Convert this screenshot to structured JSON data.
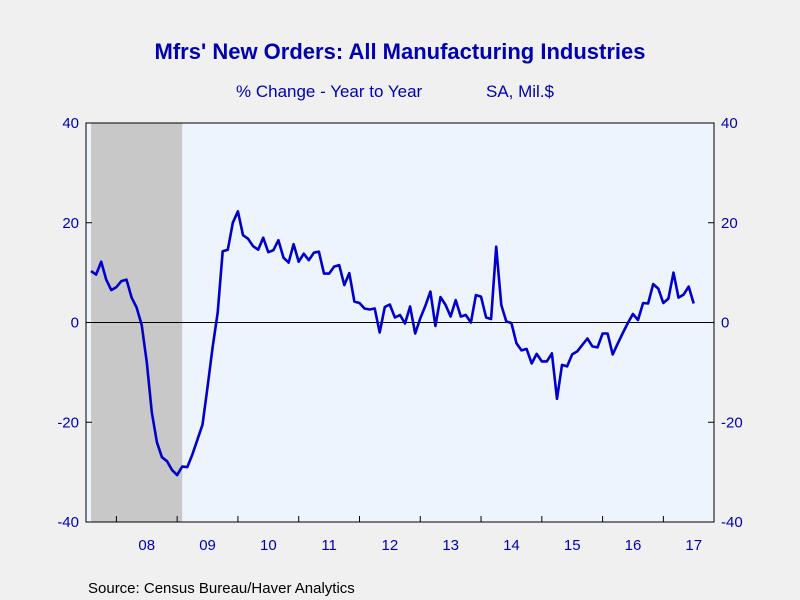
{
  "chart_data": {
    "type": "line",
    "title": "Mfrs' New Orders: All Manufacturing Industries",
    "subtitle_left": "% Change - Year to Year",
    "subtitle_right": "SA, Mil.$",
    "source": "Source:  Census Bureau/Haver Analytics",
    "ylim": [
      -40,
      40
    ],
    "yticks": [
      40,
      20,
      0,
      -20,
      -40
    ],
    "yticks_right": [
      40,
      20,
      0,
      -20,
      -40
    ],
    "x_range": [
      2007.5,
      2017.833
    ],
    "x_tick_labels": [
      {
        "label": "08",
        "x": 2008.0
      },
      {
        "label": "09",
        "x": 2009.0
      },
      {
        "label": "10",
        "x": 2010.0
      },
      {
        "label": "11",
        "x": 2011.0
      },
      {
        "label": "12",
        "x": 2012.0
      },
      {
        "label": "13",
        "x": 2013.0
      },
      {
        "label": "14",
        "x": 2014.0
      },
      {
        "label": "15",
        "x": 2015.0
      },
      {
        "label": "16",
        "x": 2016.0
      },
      {
        "label": "17",
        "x": 2017.0
      }
    ],
    "recession": {
      "start": 2007.583,
      "end": 2009.083
    },
    "grid": false,
    "colors": {
      "line": "#0000c8",
      "recession": "#c8c8c8",
      "plot_bg": "#eef4fe",
      "text": "#0000b0"
    },
    "series": [
      {
        "start": 2007.583,
        "step": 0.08333,
        "values": [
          10.3,
          9.6,
          12.2,
          8.6,
          6.5,
          7.1,
          8.3,
          8.6,
          5.0,
          3.0,
          -0.5,
          -8.0,
          -18.0,
          -24.0,
          -27.0,
          -27.8,
          -29.6,
          -30.6,
          -28.9,
          -29.0,
          -26.5,
          -23.5,
          -20.5,
          -13.0,
          -5.0,
          2.0,
          14.3,
          14.6,
          20.0,
          22.3,
          17.5,
          16.8,
          15.3,
          14.6,
          17.0,
          14.1,
          14.5,
          16.5,
          13.0,
          12.0,
          15.7,
          12.2,
          13.8,
          12.5,
          14.0,
          14.2,
          9.8,
          9.8,
          11.2,
          11.5,
          7.5,
          9.9,
          4.2,
          3.9,
          2.8,
          2.6,
          2.8,
          -2.0,
          3.1,
          3.6,
          1.0,
          1.5,
          -0.2,
          3.2,
          -2.2,
          0.8,
          3.3,
          6.2,
          -0.7,
          5.1,
          3.5,
          1.2,
          4.5,
          1.2,
          1.5,
          0.0,
          5.5,
          5.2,
          1.0,
          0.7,
          15.2,
          3.5,
          0.2,
          -0.1,
          -4.2,
          -5.6,
          -5.3,
          -8.2,
          -6.3,
          -7.8,
          -7.8,
          -6.2,
          -15.3,
          -8.5,
          -8.8,
          -6.4,
          -5.8,
          -4.5,
          -3.2,
          -4.8,
          -5.0,
          -2.2,
          -2.2,
          -6.4,
          -4.2,
          -2.1,
          -0.1,
          1.7,
          0.5,
          3.9,
          3.8,
          7.7,
          6.8,
          3.9,
          4.8,
          10.0,
          5.0,
          5.6,
          7.2,
          3.8
        ]
      }
    ]
  }
}
